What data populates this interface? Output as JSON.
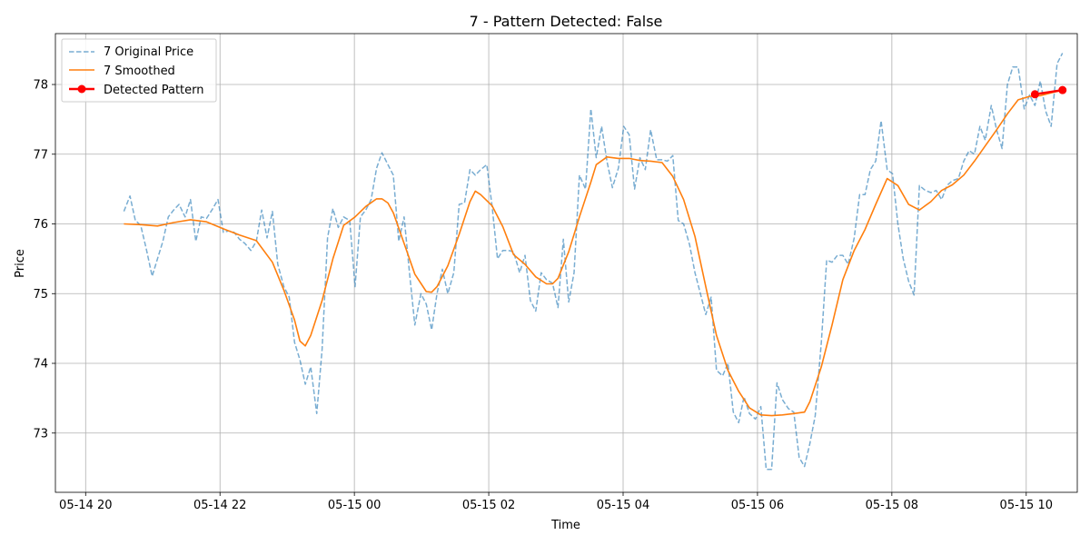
{
  "chart_data": {
    "type": "line",
    "title": "7 - Pattern Detected: False",
    "xlabel": "Time",
    "ylabel": "Price",
    "grid": true,
    "legend": {
      "placement": "top-left"
    },
    "xlim": [
      -0.45,
      14.76
    ],
    "ylim": [
      72.15,
      78.73
    ],
    "x_ticks": [
      {
        "value": 0,
        "label": "05-14 20"
      },
      {
        "value": 2,
        "label": "05-14 22"
      },
      {
        "value": 4,
        "label": "05-15 00"
      },
      {
        "value": 6,
        "label": "05-15 02"
      },
      {
        "value": 8,
        "label": "05-15 04"
      },
      {
        "value": 10,
        "label": "05-15 06"
      },
      {
        "value": 12,
        "label": "05-15 08"
      },
      {
        "value": 14,
        "label": "05-15 10"
      }
    ],
    "y_ticks": [
      73,
      74,
      75,
      76,
      77,
      78
    ],
    "series": [
      {
        "name": "7 Original Price",
        "style": "dashed",
        "color": "#1f77b4",
        "points": [
          [
            0.57,
            76.18
          ],
          [
            0.66,
            76.4
          ],
          [
            0.74,
            76.05
          ],
          [
            0.82,
            75.98
          ],
          [
            0.9,
            75.65
          ],
          [
            0.99,
            75.25
          ],
          [
            1.07,
            75.5
          ],
          [
            1.15,
            75.75
          ],
          [
            1.23,
            76.1
          ],
          [
            1.31,
            76.2
          ],
          [
            1.39,
            76.28
          ],
          [
            1.48,
            76.1
          ],
          [
            1.56,
            76.35
          ],
          [
            1.64,
            75.75
          ],
          [
            1.72,
            76.1
          ],
          [
            1.8,
            76.08
          ],
          [
            1.88,
            76.2
          ],
          [
            1.97,
            76.35
          ],
          [
            2.05,
            75.88
          ],
          [
            2.13,
            75.9
          ],
          [
            2.21,
            75.88
          ],
          [
            2.29,
            75.78
          ],
          [
            2.37,
            75.72
          ],
          [
            2.46,
            75.62
          ],
          [
            2.54,
            75.75
          ],
          [
            2.62,
            76.2
          ],
          [
            2.7,
            75.8
          ],
          [
            2.78,
            76.18
          ],
          [
            2.86,
            75.42
          ],
          [
            2.95,
            75.1
          ],
          [
            3.03,
            74.95
          ],
          [
            3.11,
            74.3
          ],
          [
            3.19,
            74.05
          ],
          [
            3.27,
            73.7
          ],
          [
            3.35,
            73.95
          ],
          [
            3.44,
            73.28
          ],
          [
            3.52,
            74.2
          ],
          [
            3.6,
            75.8
          ],
          [
            3.68,
            76.22
          ],
          [
            3.76,
            75.95
          ],
          [
            3.84,
            76.1
          ],
          [
            3.93,
            76.05
          ],
          [
            4.01,
            75.1
          ],
          [
            4.09,
            76.1
          ],
          [
            4.17,
            76.2
          ],
          [
            4.25,
            76.35
          ],
          [
            4.33,
            76.8
          ],
          [
            4.41,
            77.02
          ],
          [
            4.5,
            76.85
          ],
          [
            4.58,
            76.7
          ],
          [
            4.66,
            75.75
          ],
          [
            4.74,
            76.1
          ],
          [
            4.82,
            75.3
          ],
          [
            4.9,
            74.55
          ],
          [
            4.99,
            75.0
          ],
          [
            5.07,
            74.85
          ],
          [
            5.15,
            74.48
          ],
          [
            5.23,
            75.0
          ],
          [
            5.31,
            75.35
          ],
          [
            5.39,
            75.0
          ],
          [
            5.48,
            75.3
          ],
          [
            5.56,
            76.28
          ],
          [
            5.64,
            76.3
          ],
          [
            5.72,
            76.78
          ],
          [
            5.8,
            76.7
          ],
          [
            5.88,
            76.78
          ],
          [
            5.97,
            76.85
          ],
          [
            6.05,
            76.25
          ],
          [
            6.13,
            75.5
          ],
          [
            6.21,
            75.62
          ],
          [
            6.29,
            75.62
          ],
          [
            6.37,
            75.6
          ],
          [
            6.46,
            75.3
          ],
          [
            6.54,
            75.55
          ],
          [
            6.62,
            74.9
          ],
          [
            6.7,
            74.75
          ],
          [
            6.78,
            75.3
          ],
          [
            6.86,
            75.2
          ],
          [
            6.95,
            75.15
          ],
          [
            7.03,
            74.8
          ],
          [
            7.11,
            75.78
          ],
          [
            7.19,
            74.88
          ],
          [
            7.27,
            75.3
          ],
          [
            7.35,
            76.7
          ],
          [
            7.44,
            76.5
          ],
          [
            7.52,
            77.65
          ],
          [
            7.6,
            76.95
          ],
          [
            7.68,
            77.4
          ],
          [
            7.76,
            76.9
          ],
          [
            7.84,
            76.52
          ],
          [
            7.93,
            76.8
          ],
          [
            8.01,
            77.4
          ],
          [
            8.09,
            77.28
          ],
          [
            8.17,
            76.5
          ],
          [
            8.25,
            76.95
          ],
          [
            8.33,
            76.78
          ],
          [
            8.41,
            77.35
          ],
          [
            8.5,
            76.92
          ],
          [
            8.58,
            76.92
          ],
          [
            8.66,
            76.9
          ],
          [
            8.74,
            76.98
          ],
          [
            8.82,
            76.05
          ],
          [
            8.9,
            76.0
          ],
          [
            8.99,
            75.7
          ],
          [
            9.07,
            75.3
          ],
          [
            9.15,
            75.0
          ],
          [
            9.23,
            74.7
          ],
          [
            9.31,
            74.95
          ],
          [
            9.39,
            73.9
          ],
          [
            9.48,
            73.82
          ],
          [
            9.56,
            74.0
          ],
          [
            9.64,
            73.3
          ],
          [
            9.72,
            73.15
          ],
          [
            9.8,
            73.52
          ],
          [
            9.88,
            73.28
          ],
          [
            9.97,
            73.2
          ],
          [
            10.05,
            73.38
          ],
          [
            10.13,
            72.48
          ],
          [
            10.21,
            72.48
          ],
          [
            10.29,
            73.72
          ],
          [
            10.37,
            73.48
          ],
          [
            10.46,
            73.35
          ],
          [
            10.54,
            73.3
          ],
          [
            10.62,
            72.65
          ],
          [
            10.7,
            72.52
          ],
          [
            10.78,
            72.85
          ],
          [
            10.86,
            73.25
          ],
          [
            10.95,
            74.3
          ],
          [
            11.03,
            75.48
          ],
          [
            11.11,
            75.45
          ],
          [
            11.19,
            75.55
          ],
          [
            11.27,
            75.55
          ],
          [
            11.35,
            75.42
          ],
          [
            11.44,
            75.8
          ],
          [
            11.52,
            76.42
          ],
          [
            11.6,
            76.42
          ],
          [
            11.68,
            76.78
          ],
          [
            11.76,
            76.9
          ],
          [
            11.84,
            77.48
          ],
          [
            11.93,
            76.78
          ],
          [
            12.01,
            76.72
          ],
          [
            12.09,
            76.0
          ],
          [
            12.17,
            75.5
          ],
          [
            12.25,
            75.18
          ],
          [
            12.33,
            74.98
          ],
          [
            12.41,
            76.55
          ],
          [
            12.5,
            76.48
          ],
          [
            12.58,
            76.45
          ],
          [
            12.66,
            76.48
          ],
          [
            12.74,
            76.35
          ],
          [
            12.82,
            76.55
          ],
          [
            12.9,
            76.62
          ],
          [
            12.99,
            76.65
          ],
          [
            13.07,
            76.9
          ],
          [
            13.15,
            77.05
          ],
          [
            13.23,
            77.0
          ],
          [
            13.31,
            77.4
          ],
          [
            13.39,
            77.2
          ],
          [
            13.48,
            77.7
          ],
          [
            13.56,
            77.35
          ],
          [
            13.64,
            77.08
          ],
          [
            13.72,
            78.0
          ],
          [
            13.8,
            78.25
          ],
          [
            13.88,
            78.25
          ],
          [
            13.97,
            77.65
          ],
          [
            14.05,
            77.85
          ],
          [
            14.13,
            77.7
          ],
          [
            14.21,
            78.05
          ],
          [
            14.29,
            77.62
          ],
          [
            14.37,
            77.4
          ],
          [
            14.46,
            78.3
          ],
          [
            14.54,
            78.45
          ]
        ]
      },
      {
        "name": "7 Smoothed",
        "style": "solid",
        "color": "#ff7f0e",
        "points": [
          [
            0.57,
            76.0
          ],
          [
            0.82,
            75.99
          ],
          [
            1.07,
            75.97
          ],
          [
            1.31,
            76.02
          ],
          [
            1.56,
            76.06
          ],
          [
            1.8,
            76.03
          ],
          [
            2.05,
            75.93
          ],
          [
            2.29,
            75.84
          ],
          [
            2.54,
            75.76
          ],
          [
            2.78,
            75.45
          ],
          [
            2.95,
            75.05
          ],
          [
            3.11,
            74.62
          ],
          [
            3.19,
            74.32
          ],
          [
            3.27,
            74.25
          ],
          [
            3.35,
            74.4
          ],
          [
            3.52,
            74.9
          ],
          [
            3.68,
            75.5
          ],
          [
            3.84,
            75.98
          ],
          [
            4.01,
            76.1
          ],
          [
            4.17,
            76.25
          ],
          [
            4.33,
            76.36
          ],
          [
            4.41,
            76.36
          ],
          [
            4.5,
            76.3
          ],
          [
            4.58,
            76.16
          ],
          [
            4.74,
            75.72
          ],
          [
            4.9,
            75.28
          ],
          [
            5.07,
            75.03
          ],
          [
            5.15,
            75.02
          ],
          [
            5.23,
            75.1
          ],
          [
            5.39,
            75.4
          ],
          [
            5.56,
            75.85
          ],
          [
            5.72,
            76.32
          ],
          [
            5.8,
            76.47
          ],
          [
            5.88,
            76.42
          ],
          [
            6.05,
            76.26
          ],
          [
            6.21,
            75.96
          ],
          [
            6.37,
            75.56
          ],
          [
            6.54,
            75.42
          ],
          [
            6.7,
            75.24
          ],
          [
            6.86,
            75.14
          ],
          [
            6.95,
            75.14
          ],
          [
            7.03,
            75.22
          ],
          [
            7.19,
            75.6
          ],
          [
            7.35,
            76.1
          ],
          [
            7.52,
            76.6
          ],
          [
            7.6,
            76.85
          ],
          [
            7.76,
            76.96
          ],
          [
            7.93,
            76.94
          ],
          [
            8.09,
            76.94
          ],
          [
            8.25,
            76.91
          ],
          [
            8.41,
            76.9
          ],
          [
            8.58,
            76.88
          ],
          [
            8.74,
            76.68
          ],
          [
            8.9,
            76.35
          ],
          [
            9.07,
            75.82
          ],
          [
            9.23,
            75.1
          ],
          [
            9.39,
            74.4
          ],
          [
            9.56,
            73.9
          ],
          [
            9.72,
            73.6
          ],
          [
            9.88,
            73.36
          ],
          [
            10.05,
            73.26
          ],
          [
            10.21,
            73.25
          ],
          [
            10.37,
            73.26
          ],
          [
            10.54,
            73.28
          ],
          [
            10.7,
            73.3
          ],
          [
            10.78,
            73.45
          ],
          [
            10.95,
            73.95
          ],
          [
            11.11,
            74.55
          ],
          [
            11.27,
            75.2
          ],
          [
            11.44,
            75.62
          ],
          [
            11.6,
            75.92
          ],
          [
            11.76,
            76.28
          ],
          [
            11.93,
            76.65
          ],
          [
            12.09,
            76.55
          ],
          [
            12.25,
            76.28
          ],
          [
            12.41,
            76.2
          ],
          [
            12.58,
            76.32
          ],
          [
            12.74,
            76.48
          ],
          [
            12.9,
            76.56
          ],
          [
            13.07,
            76.7
          ],
          [
            13.23,
            76.9
          ],
          [
            13.39,
            77.12
          ],
          [
            13.56,
            77.35
          ],
          [
            13.72,
            77.58
          ],
          [
            13.88,
            77.78
          ],
          [
            14.05,
            77.83
          ],
          [
            14.21,
            77.84
          ],
          [
            14.37,
            77.88
          ],
          [
            14.54,
            77.92
          ]
        ]
      },
      {
        "name": "Detected Pattern",
        "style": "solid-markers",
        "color": "#ff0000",
        "points": [
          [
            14.13,
            77.86
          ],
          [
            14.54,
            77.92
          ]
        ]
      }
    ]
  }
}
